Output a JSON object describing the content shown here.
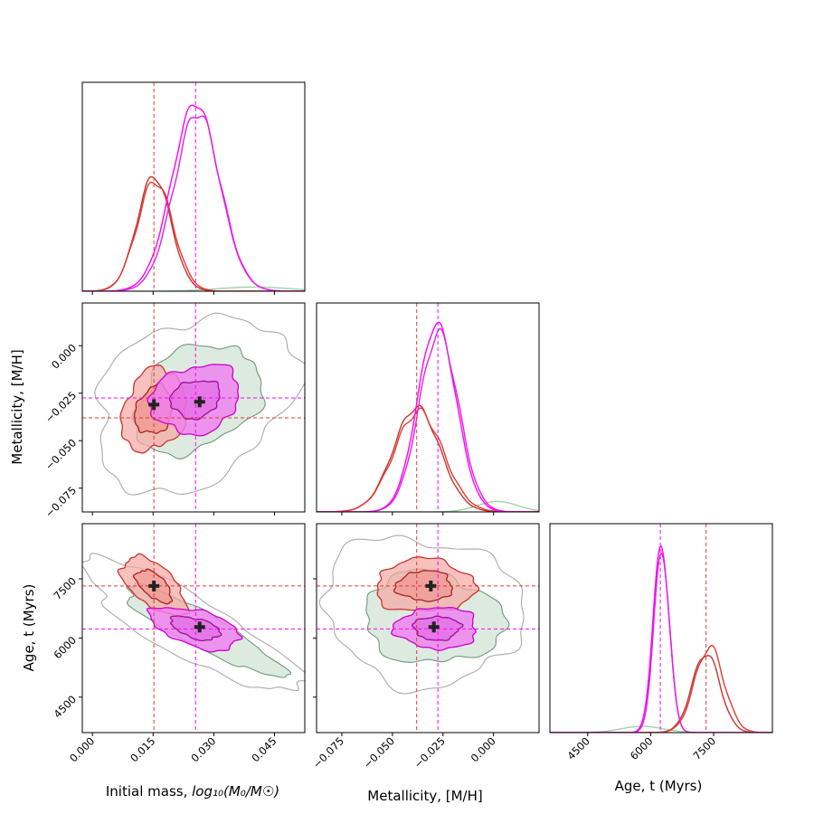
{
  "chart_data": {
    "type": "corner",
    "parameters": [
      "Initial mass, log10(M0/Msun)",
      "Metallicity, [M/H]",
      "Age, t (Myrs)"
    ],
    "axis_titles": {
      "mass_prefix": "Initial mass, ",
      "mass_math": "log₁₀(M₀/M☉)",
      "metallicity": "Metallicity, [M/H]",
      "age": "Age, t (Myrs)"
    },
    "ranges": {
      "mass": [
        -0.0025,
        0.0525
      ],
      "metallicity": [
        -0.0875,
        0.0225
      ],
      "age": [
        3600,
        8900
      ]
    },
    "ticks": {
      "mass": {
        "values": [
          0.0,
          0.015,
          0.03,
          0.045
        ],
        "labels": [
          "0.000",
          "0.015",
          "0.030",
          "0.045"
        ]
      },
      "metallicity": {
        "values": [
          -0.075,
          -0.05,
          -0.025,
          0.0
        ],
        "labels": [
          "−0.075",
          "−0.050",
          "−0.025",
          "0.000"
        ]
      },
      "age": {
        "values": [
          4500,
          6000,
          7500
        ],
        "labels": [
          "4500",
          "6000",
          "7500"
        ]
      }
    },
    "series": [
      {
        "name": "red solution",
        "color": "#e03a33",
        "line_color": "#c9342d",
        "mass_mean": 0.0152,
        "mass_sigma": 0.0042,
        "metallicity_mean": -0.038,
        "metallicity_sigma": 0.0115,
        "age_mean": 7320,
        "age_sigma": 330,
        "peak_mass": 0.55,
        "peak_metallicity": 0.5,
        "peak_age": 0.38,
        "truth_mass": 0.0152,
        "truth_metallicity": -0.038,
        "truth_age": 7320,
        "marker_mass": 0.0152,
        "marker_metallicity": -0.031,
        "marker_age": 7320,
        "rho_mass_met": 0.15,
        "rho_mass_age": -0.6,
        "rho_met_age": 0.0
      },
      {
        "name": "magenta solution",
        "color": "#ff00ff",
        "line_color": "#cc00cc",
        "mass_mean": 0.0255,
        "mass_sigma": 0.0058,
        "metallicity_mean": -0.028,
        "metallicity_sigma": 0.0095,
        "age_mean": 6250,
        "age_sigma": 190,
        "peak_mass": 0.9,
        "peak_metallicity": 0.9,
        "peak_age": 0.9,
        "truth_mass": 0.0255,
        "truth_metallicity": -0.0275,
        "truth_age": 6230,
        "marker_mass": 0.0265,
        "marker_metallicity": -0.0295,
        "marker_age": 6280,
        "rho_mass_met": 0.15,
        "rho_mass_age": -0.5,
        "rho_met_age": 0.0
      },
      {
        "name": "green background",
        "color": "#8fb79a",
        "line_color": "#6f9a7b",
        "mass_mean": 0.024,
        "mass_sigma": 0.013,
        "metallicity_mean": -0.03,
        "metallicity_sigma": 0.025,
        "age_mean": 6200,
        "age_sigma": 800,
        "rho_mass_met": 0.3,
        "rho_mass_age": -0.8,
        "rho_met_age": 0.0
      }
    ]
  }
}
